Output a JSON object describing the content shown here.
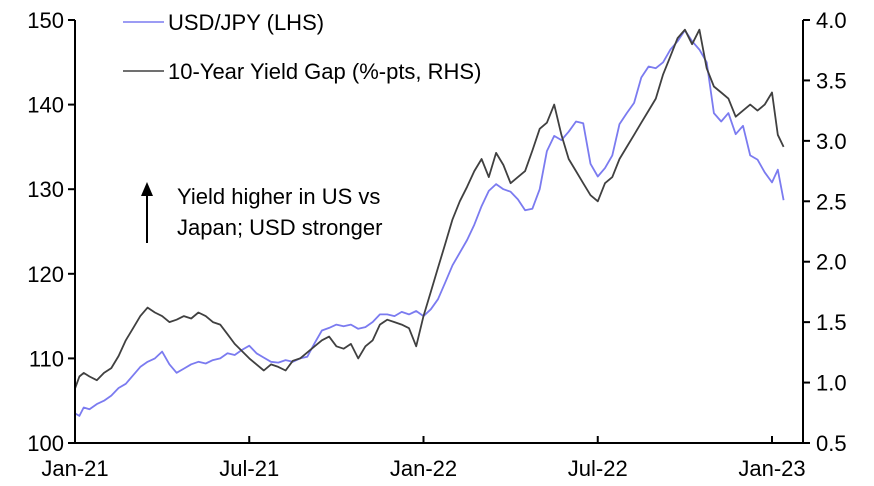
{
  "chart_data": {
    "type": "line",
    "title": "",
    "xlabel": "",
    "ylabel_left": "",
    "ylabel_right": "",
    "x_axis": {
      "unit": "months since Jan-21",
      "range": [
        0,
        24
      ],
      "ticks": [
        {
          "value": 0,
          "label": "Jan-21"
        },
        {
          "value": 6,
          "label": "Jul-21"
        },
        {
          "value": 12,
          "label": "Jan-22"
        },
        {
          "value": 18,
          "label": "Jul-22"
        },
        {
          "value": 24,
          "label": "Jan-23"
        }
      ]
    },
    "y_left": {
      "range": [
        100,
        150
      ],
      "ticks": [
        {
          "value": 100,
          "label": "100"
        },
        {
          "value": 110,
          "label": "110"
        },
        {
          "value": 120,
          "label": "120"
        },
        {
          "value": 130,
          "label": "130"
        },
        {
          "value": 140,
          "label": "140"
        },
        {
          "value": 150,
          "label": "150"
        }
      ]
    },
    "y_right": {
      "range": [
        0.5,
        4.0
      ],
      "ticks": [
        {
          "value": 0.5,
          "label": "0.5"
        },
        {
          "value": 1.0,
          "label": "1.0"
        },
        {
          "value": 1.5,
          "label": "1.5"
        },
        {
          "value": 2.0,
          "label": "2.0"
        },
        {
          "value": 2.5,
          "label": "2.5"
        },
        {
          "value": 3.0,
          "label": "3.0"
        },
        {
          "value": 3.5,
          "label": "3.5"
        },
        {
          "value": 4.0,
          "label": "4.0"
        }
      ]
    },
    "grid": false,
    "legend": {
      "placement": "top-left",
      "entries": [
        {
          "label": "USD/JPY (LHS)",
          "color": "#7b7bf0"
        },
        {
          "label": "10-Year Yield Gap (%-pts, RHS)",
          "color": "#404040"
        }
      ]
    },
    "annotation": {
      "lines": [
        "Yield higher in US vs",
        "Japan; USD stronger"
      ],
      "arrow": "up"
    },
    "series": [
      {
        "name": "USD/JPY (LHS)",
        "axis": "left",
        "color": "#7b7bf0",
        "x": [
          0,
          0.15,
          0.3,
          0.5,
          0.75,
          1.0,
          1.25,
          1.5,
          1.75,
          2.0,
          2.25,
          2.5,
          2.75,
          3.0,
          3.25,
          3.5,
          3.75,
          4.0,
          4.25,
          4.5,
          4.75,
          5.0,
          5.25,
          5.5,
          5.75,
          6.0,
          6.25,
          6.5,
          6.75,
          7.0,
          7.25,
          7.5,
          7.75,
          8.0,
          8.25,
          8.5,
          8.75,
          9.0,
          9.25,
          9.5,
          9.75,
          10.0,
          10.25,
          10.5,
          10.75,
          11.0,
          11.25,
          11.5,
          11.75,
          12.0,
          12.25,
          12.5,
          12.75,
          13.0,
          13.25,
          13.5,
          13.75,
          14.0,
          14.25,
          14.5,
          14.75,
          15.0,
          15.25,
          15.5,
          15.75,
          16.0,
          16.25,
          16.5,
          16.75,
          17.0,
          17.25,
          17.5,
          17.75,
          18.0,
          18.25,
          18.5,
          18.75,
          19.0,
          19.25,
          19.5,
          19.75,
          20.0,
          20.25,
          20.5,
          20.75,
          21.0,
          21.25,
          21.5,
          21.75,
          22.0,
          22.25,
          22.5,
          22.75,
          23.0,
          23.25,
          23.5,
          23.75,
          24.0,
          24.2,
          24.4
        ],
        "values": [
          103.5,
          103.2,
          104.2,
          104.0,
          104.6,
          105.0,
          105.6,
          106.5,
          107.0,
          108.0,
          109.0,
          109.6,
          110.0,
          110.8,
          109.3,
          108.3,
          108.8,
          109.3,
          109.6,
          109.4,
          109.8,
          110.0,
          110.6,
          110.4,
          111.0,
          111.5,
          110.6,
          110.1,
          109.6,
          109.5,
          109.8,
          109.6,
          110.0,
          110.2,
          111.8,
          113.3,
          113.6,
          114.0,
          113.8,
          114.0,
          113.5,
          113.7,
          114.3,
          115.2,
          115.2,
          115.0,
          115.5,
          115.2,
          115.6,
          115.0,
          115.8,
          117.0,
          119.0,
          121.0,
          122.5,
          124.0,
          125.8,
          128.0,
          129.8,
          130.6,
          130.0,
          129.7,
          128.8,
          127.5,
          127.7,
          130.0,
          134.5,
          136.3,
          135.8,
          136.8,
          138.0,
          137.8,
          133.0,
          131.5,
          132.5,
          134.0,
          137.7,
          139.0,
          140.2,
          143.2,
          144.5,
          144.3,
          145.0,
          146.5,
          147.5,
          148.8,
          147.5,
          146.5,
          145.0,
          139.0,
          138.0,
          139.0,
          136.5,
          137.5,
          134.0,
          133.5,
          132.0,
          130.8,
          132.3,
          128.7
        ]
      },
      {
        "name": "10-Year Yield Gap (%-pts, RHS)",
        "axis": "right",
        "color": "#404040",
        "x": [
          0,
          0.15,
          0.3,
          0.5,
          0.75,
          1.0,
          1.25,
          1.5,
          1.75,
          2.0,
          2.25,
          2.5,
          2.75,
          3.0,
          3.25,
          3.5,
          3.75,
          4.0,
          4.25,
          4.5,
          4.75,
          5.0,
          5.25,
          5.5,
          5.75,
          6.0,
          6.25,
          6.5,
          6.75,
          7.0,
          7.25,
          7.5,
          7.75,
          8.0,
          8.25,
          8.5,
          8.75,
          9.0,
          9.25,
          9.5,
          9.75,
          10.0,
          10.25,
          10.5,
          10.75,
          11.0,
          11.25,
          11.5,
          11.75,
          12.0,
          12.25,
          12.5,
          12.75,
          13.0,
          13.25,
          13.5,
          13.75,
          14.0,
          14.25,
          14.5,
          14.75,
          15.0,
          15.25,
          15.5,
          15.75,
          16.0,
          16.25,
          16.5,
          16.75,
          17.0,
          17.25,
          17.5,
          17.75,
          18.0,
          18.25,
          18.5,
          18.75,
          19.0,
          19.25,
          19.5,
          19.75,
          20.0,
          20.25,
          20.5,
          20.75,
          21.0,
          21.25,
          21.5,
          21.75,
          22.0,
          22.25,
          22.5,
          22.75,
          23.0,
          23.25,
          23.5,
          23.75,
          24.0,
          24.2,
          24.4
        ],
        "values": [
          0.95,
          1.05,
          1.08,
          1.05,
          1.02,
          1.08,
          1.12,
          1.22,
          1.35,
          1.45,
          1.55,
          1.62,
          1.58,
          1.55,
          1.5,
          1.52,
          1.55,
          1.53,
          1.58,
          1.55,
          1.5,
          1.48,
          1.4,
          1.32,
          1.26,
          1.2,
          1.15,
          1.1,
          1.15,
          1.13,
          1.1,
          1.18,
          1.2,
          1.25,
          1.3,
          1.35,
          1.38,
          1.3,
          1.28,
          1.32,
          1.2,
          1.3,
          1.35,
          1.48,
          1.52,
          1.5,
          1.48,
          1.45,
          1.3,
          1.55,
          1.75,
          1.95,
          2.15,
          2.35,
          2.5,
          2.62,
          2.75,
          2.85,
          2.7,
          2.9,
          2.8,
          2.65,
          2.7,
          2.75,
          2.92,
          3.1,
          3.15,
          3.3,
          3.05,
          2.85,
          2.75,
          2.65,
          2.55,
          2.5,
          2.65,
          2.7,
          2.85,
          2.95,
          3.05,
          3.15,
          3.25,
          3.35,
          3.55,
          3.7,
          3.85,
          3.92,
          3.8,
          3.92,
          3.6,
          3.45,
          3.4,
          3.35,
          3.2,
          3.25,
          3.3,
          3.25,
          3.3,
          3.4,
          3.05,
          2.95
        ]
      }
    ]
  }
}
